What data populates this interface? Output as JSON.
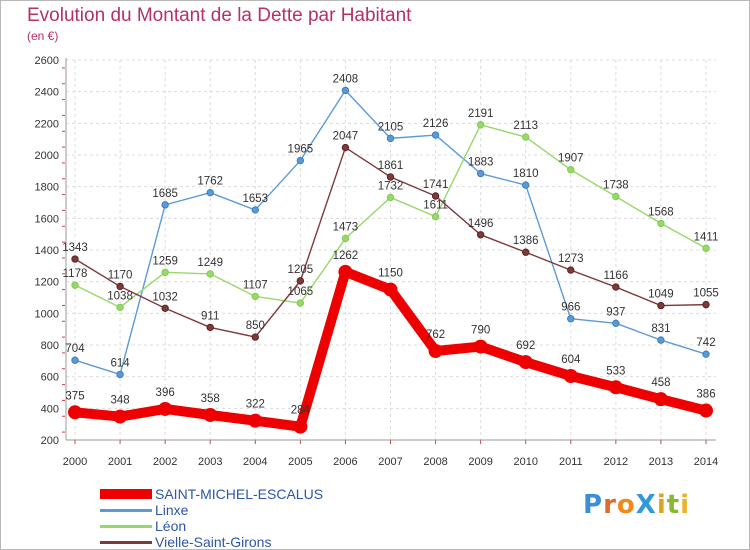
{
  "title": "Evolution du Montant de la Dette par Habitant",
  "subtitle": "(en €)",
  "logo": {
    "text": "ProXiti",
    "letters": [
      {
        "ch": "P",
        "color": "#3a8fd6"
      },
      {
        "ch": "r",
        "color": "#e06a2a"
      },
      {
        "ch": "o",
        "color": "#ef8a1a"
      },
      {
        "ch": "X",
        "color": "#2f9ad8"
      },
      {
        "ch": "i",
        "color": "#e0a326"
      },
      {
        "ch": "t",
        "color": "#89b831"
      },
      {
        "ch": "i",
        "color": "#e9b42a"
      }
    ]
  },
  "chart_data": {
    "type": "line",
    "title": "Evolution du Montant de la Dette par Habitant",
    "subtitle": "(en €)",
    "xlabel": "",
    "ylabel": "",
    "ylim": [
      200,
      2600
    ],
    "y_ticks": [
      200,
      400,
      600,
      800,
      1000,
      1200,
      1400,
      1600,
      1800,
      2000,
      2200,
      2400,
      2600
    ],
    "grid": true,
    "legend_position": "bottom-left",
    "x": [
      "2000",
      "2001",
      "2002",
      "2003",
      "2004",
      "2005",
      "2006",
      "2007",
      "2008",
      "2009",
      "2010",
      "2011",
      "2012",
      "2013",
      "2014"
    ],
    "series": [
      {
        "name": "Linxe",
        "color": "#5b9bd5",
        "marker": "#3b7ec0",
        "emphasis": false,
        "values": [
          704,
          614,
          1685,
          1762,
          1653,
          1965,
          2408,
          2105,
          2126,
          1883,
          1810,
          966,
          937,
          831,
          742
        ]
      },
      {
        "name": "Léon",
        "color": "#98d86b",
        "marker": "#7fcc4d",
        "emphasis": false,
        "values": [
          1178,
          1038,
          1259,
          1249,
          1107,
          1065,
          1473,
          1732,
          1611,
          2191,
          2113,
          1907,
          1738,
          1568,
          1411
        ]
      },
      {
        "name": "Vielle-Saint-Girons",
        "color": "#7d3a3a",
        "marker": "#5e2222",
        "emphasis": false,
        "values": [
          1343,
          1170,
          1032,
          911,
          850,
          1205,
          2047,
          1861,
          1741,
          1496,
          1386,
          1273,
          1166,
          1049,
          1055
        ]
      },
      {
        "name": "SAINT-MICHEL-ESCALUS",
        "color": "#ee0000",
        "marker": "#ee0000",
        "emphasis": true,
        "values": [
          375,
          348,
          396,
          358,
          322,
          284,
          1262,
          1150,
          762,
          790,
          692,
          604,
          533,
          458,
          386
        ]
      }
    ],
    "legend_order": [
      "SAINT-MICHEL-ESCALUS",
      "Linxe",
      "Léon",
      "Vielle-Saint-Girons"
    ]
  }
}
